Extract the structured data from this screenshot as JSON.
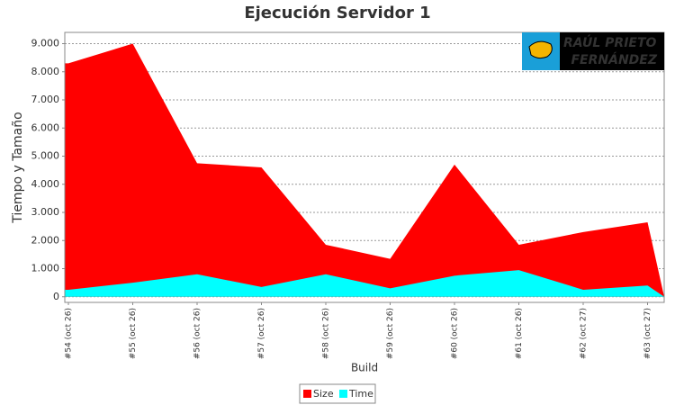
{
  "chart_data": {
    "type": "area",
    "title": "Ejecución Servidor 1",
    "x_label": "Build",
    "y_label": "Tiempo y Tamaño",
    "watermark": [
      "RAÚL PRIETO",
      "FERNÁNDEZ"
    ],
    "categories": [
      "#54 (oct 26)",
      "#55 (oct 26)",
      "#56 (oct 26)",
      "#57 (oct 26)",
      "#58 (oct 26)",
      "#59 (oct 26)",
      "#60 (oct 26)",
      "#61 (oct 26)",
      "#62 (oct 27)",
      "#63 (oct 27)"
    ],
    "series": [
      {
        "name": "Size",
        "color": "#ff0000",
        "values": [
          8300,
          9000,
          4750,
          4600,
          1850,
          1350,
          4700,
          1850,
          2300,
          2650
        ]
      },
      {
        "name": "Time",
        "color": "#00ffff",
        "values": [
          250,
          500,
          800,
          350,
          800,
          300,
          750,
          950,
          250,
          400
        ]
      }
    ],
    "ylim": [
      -200,
      9400
    ],
    "yticks": [
      {
        "value": 0,
        "label": "0"
      },
      {
        "value": 1000,
        "label": "1.000"
      },
      {
        "value": 2000,
        "label": "2.000"
      },
      {
        "value": 3000,
        "label": "3.000"
      },
      {
        "value": 4000,
        "label": "4.000"
      },
      {
        "value": 5000,
        "label": "5.000"
      },
      {
        "value": 6000,
        "label": "6.000"
      },
      {
        "value": 7000,
        "label": "7.000"
      },
      {
        "value": 8000,
        "label": "8.000"
      },
      {
        "value": 9000,
        "label": "9.000"
      }
    ],
    "grid": true,
    "legend": "bottom"
  }
}
